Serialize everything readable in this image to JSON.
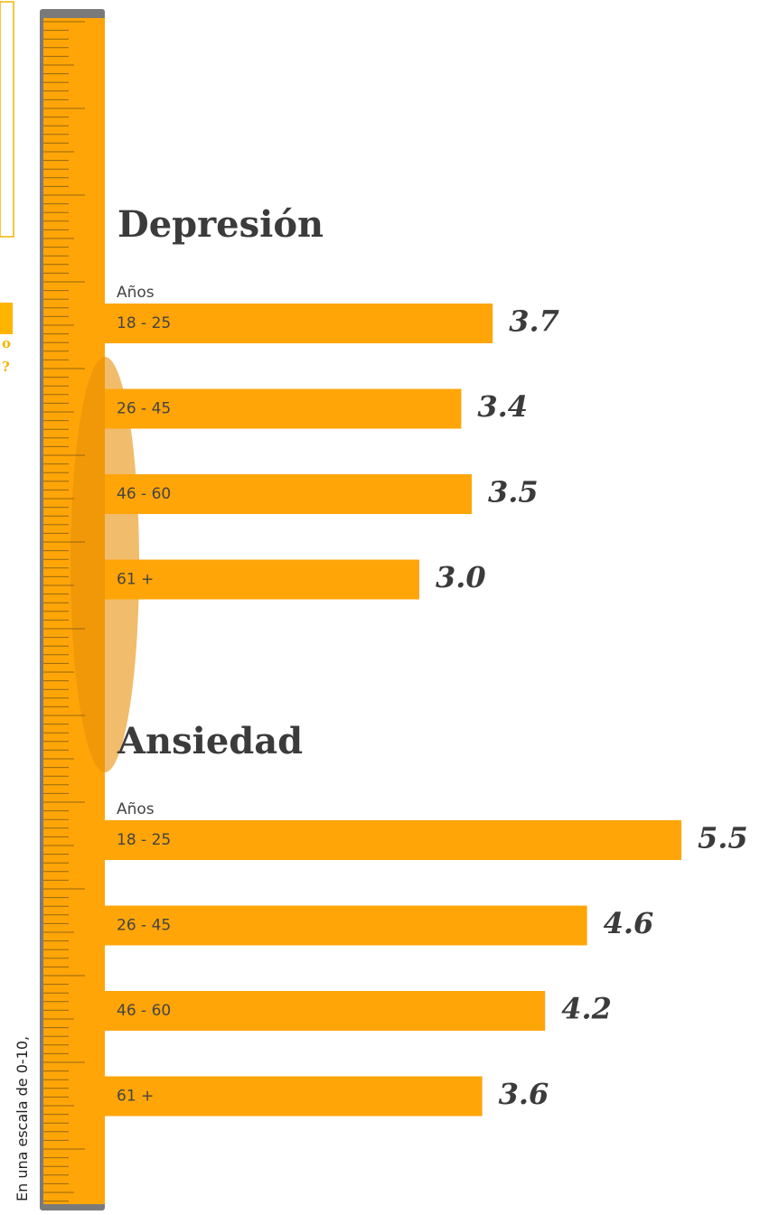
{
  "chart_data": [
    {
      "type": "bar",
      "title": "Depresión",
      "category_label": "Años",
      "categories": [
        "18 - 25",
        "26 - 45",
        "46 - 60",
        "61 +"
      ],
      "values": [
        3.7,
        3.4,
        3.5,
        3.0
      ],
      "value_labels": [
        "3.7",
        "3.4",
        "3.5",
        "3.0"
      ],
      "color": "#ffa508"
    },
    {
      "type": "bar",
      "title": "Ansiedad",
      "category_label": "Años",
      "categories": [
        "18 - 25",
        "26 - 45",
        "46 - 60",
        "61 +"
      ],
      "values": [
        5.5,
        4.6,
        4.2,
        3.6
      ],
      "value_labels": [
        "5.5",
        "4.6",
        "4.2",
        "3.6"
      ],
      "color": "#ffa508"
    }
  ],
  "side_note": "En una escala de 0-10,",
  "fragments": [
    "o",
    "?"
  ]
}
